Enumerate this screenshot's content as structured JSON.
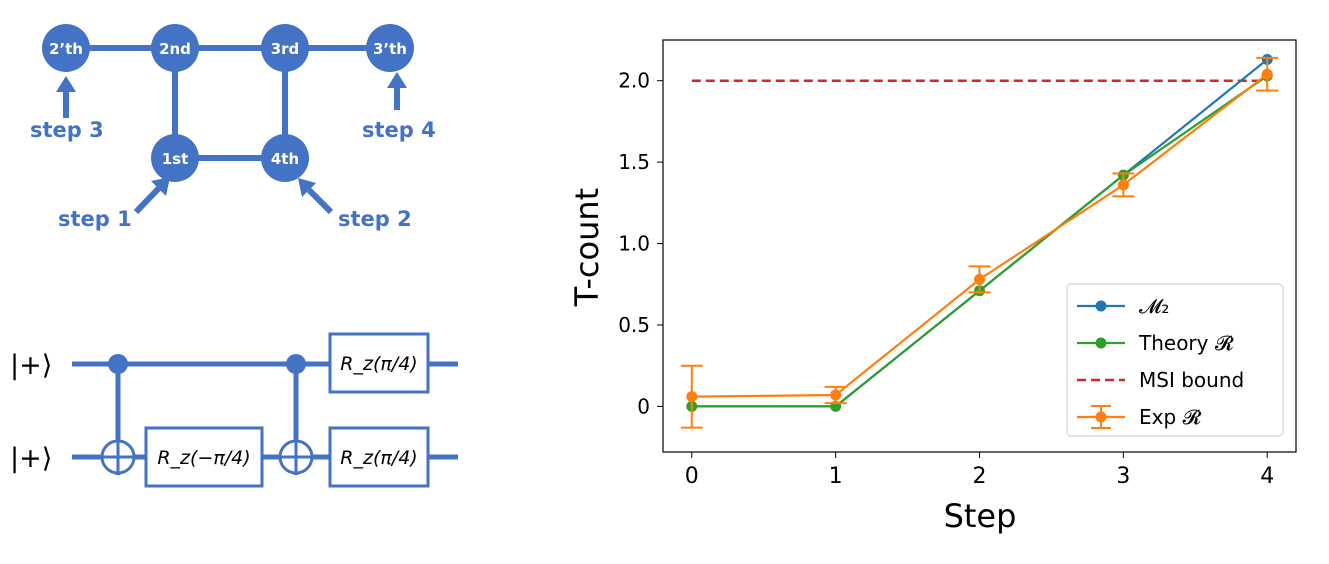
{
  "graph": {
    "nodes": [
      {
        "id": "n2th",
        "label": "2’th"
      },
      {
        "id": "n2nd",
        "label": "2nd"
      },
      {
        "id": "n3rd",
        "label": "3rd"
      },
      {
        "id": "n3th",
        "label": "3’th"
      },
      {
        "id": "n1st",
        "label": "1st"
      },
      {
        "id": "n4th",
        "label": "4th"
      }
    ],
    "step_labels": {
      "step1": "step 1",
      "step2": "step 2",
      "step3": "step 3",
      "step4": "step 4"
    },
    "color": "#4472c4"
  },
  "circuit": {
    "inputs": [
      "|+⟩",
      "|+⟩"
    ],
    "gates": {
      "rz_neg": "R_z(−π/4)",
      "rz_top": "R_z(π/4)",
      "rz_bottom": "R_z(π/4)"
    }
  },
  "chart_data": {
    "type": "line",
    "xlabel": "Step",
    "ylabel": "T-count",
    "x": [
      0,
      1,
      2,
      3,
      4
    ],
    "xlim": [
      -0.2,
      4.2
    ],
    "ylim": [
      -0.28,
      2.25
    ],
    "xticks": [
      "0",
      "1",
      "2",
      "3",
      "4"
    ],
    "yticks": [
      "0",
      "0.5",
      "1.0",
      "1.5",
      "2.0"
    ],
    "series": [
      {
        "name": "𝓜₂",
        "color": "#1f77b4",
        "values": [
          null,
          null,
          null,
          null,
          2.13
        ]
      },
      {
        "name": "Theory 𝓡",
        "color": "#2ca02c",
        "values": [
          0,
          0,
          0.71,
          1.42,
          2.03
        ]
      },
      {
        "name": "Exp 𝓡",
        "color": "#ff7f0e",
        "values": [
          0.06,
          0.07,
          0.78,
          1.36,
          2.04
        ],
        "errors": [
          0.19,
          0.05,
          0.08,
          0.07,
          0.1
        ]
      }
    ],
    "reference_line": {
      "name": "MSI bound",
      "value": 2.0,
      "color": "#d62728"
    },
    "legend_position": "lower-right"
  }
}
